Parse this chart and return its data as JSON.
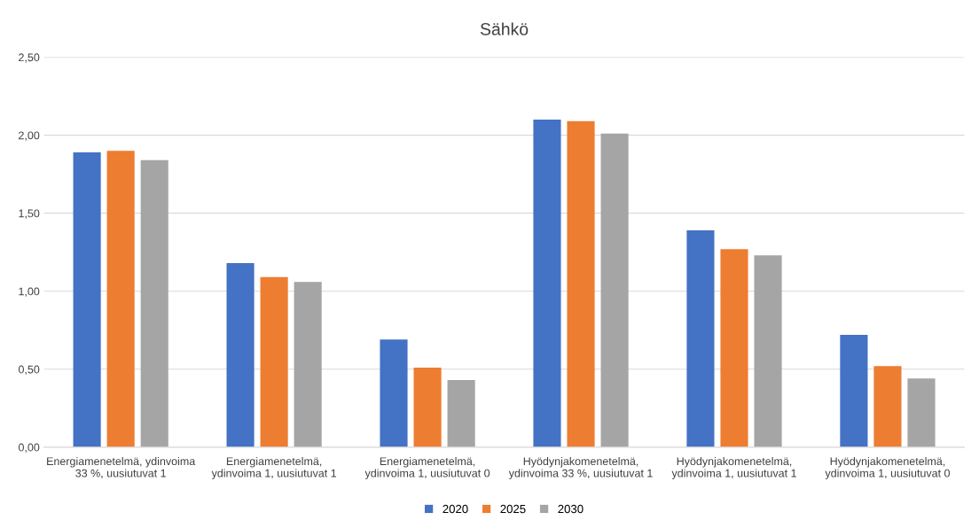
{
  "chart_data": {
    "type": "bar",
    "title": "Sähkö",
    "categories": [
      "Energiamenetelmä, ydinvoima 33 %, uusiutuvat 1",
      "Energiamenetelmä, ydinvoima 1, uusiutuvat 1",
      "Energiamenetelmä, ydinvoima 1, uusiutuvat 0",
      "Hyödynjakomenetelmä, ydinvoima 33 %, uusiutuvat 1",
      "Hyödynjakomenetelmä, ydinvoima 1, uusiutuvat 1",
      "Hyödynjakomenetelmä, ydinvoima 1, uusiutuvat 0"
    ],
    "series": [
      {
        "name": "2020",
        "color": "#4472c4",
        "values": [
          1.89,
          1.18,
          0.69,
          2.1,
          1.39,
          0.72
        ]
      },
      {
        "name": "2025",
        "color": "#ed7d31",
        "values": [
          1.9,
          1.09,
          0.51,
          2.09,
          1.27,
          0.52
        ]
      },
      {
        "name": "2030",
        "color": "#a5a5a5",
        "values": [
          1.84,
          1.06,
          0.43,
          2.01,
          1.23,
          0.44
        ]
      }
    ],
    "ylim": [
      0,
      2.5
    ],
    "yticks": [
      {
        "value": 0,
        "label": "0,00"
      },
      {
        "value": 0.5,
        "label": "0,50"
      },
      {
        "value": 1,
        "label": "1,00"
      },
      {
        "value": 1.5,
        "label": "1,50"
      },
      {
        "value": 2,
        "label": "2,00"
      },
      {
        "value": 2.5,
        "label": "2,50"
      }
    ],
    "grid": "y",
    "legend": "bottom"
  }
}
